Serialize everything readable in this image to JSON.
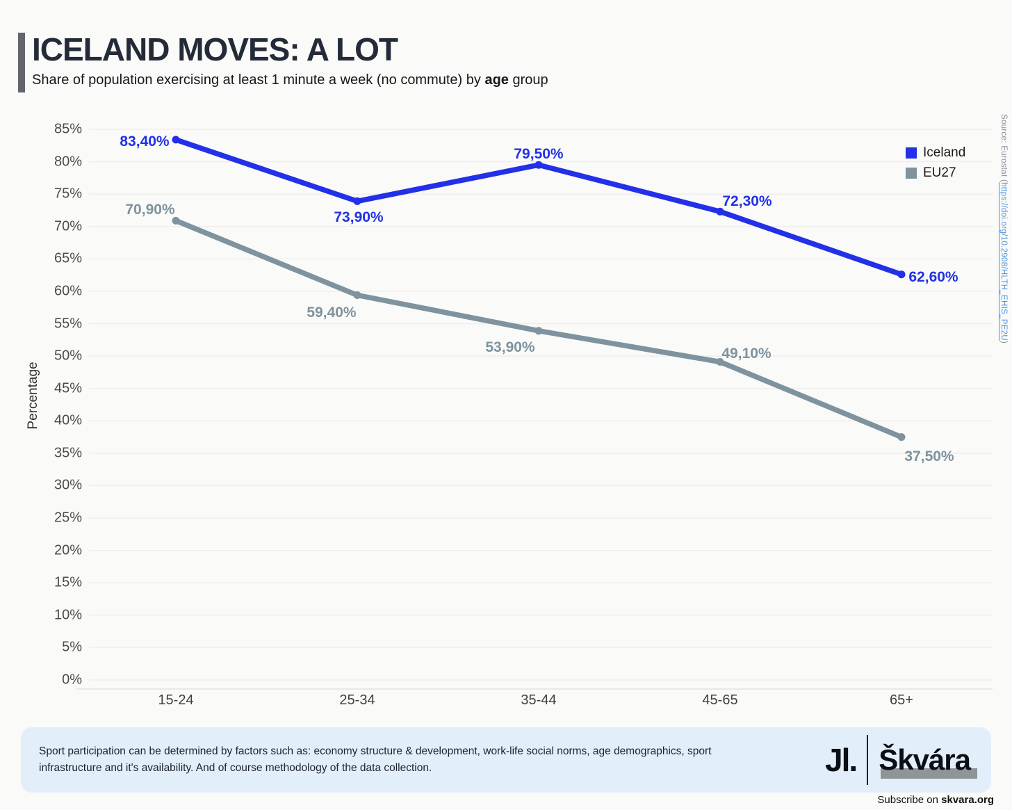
{
  "header": {
    "title": "ICELAND MOVES: A LOT",
    "subtitle_pre": "Share of population exercising at least 1 minute a week (no commute) by ",
    "subtitle_bold": "age",
    "subtitle_post": " group"
  },
  "chart_data": {
    "type": "line",
    "title": "ICELAND MOVES: A LOT",
    "subtitle": "Share of population exercising at least 1 minute a week (no commute) by age group",
    "categories": [
      "15-24",
      "25-34",
      "35-44",
      "45-65",
      "65+"
    ],
    "series": [
      {
        "name": "Iceland",
        "values": [
          83.4,
          73.9,
          79.5,
          72.3,
          62.6
        ],
        "labels": [
          "83,40%",
          "73,90%",
          "79,50%",
          "72,30%",
          "62,60%"
        ],
        "color": "#2230e8"
      },
      {
        "name": "EU27",
        "values": [
          70.9,
          59.4,
          53.9,
          49.1,
          37.5
        ],
        "labels": [
          "70,90%",
          "59,40%",
          "53,90%",
          "49,10%",
          "37,50%"
        ],
        "color": "#7e939e"
      }
    ],
    "xlabel": "",
    "ylabel": "Percentage",
    "ylim": [
      0,
      85
    ],
    "ytick_step": 5,
    "ytick_suffix": "%",
    "grid": true,
    "legend_position": "top-right"
  },
  "source": {
    "prefix": "Source: Eurostat (",
    "link": "https://doi.org/10.2908/HLTH_EHIS_PE2U",
    "suffix": ")"
  },
  "footer": {
    "note": "Sport participation can be determined by factors such as: economy structure & development, work-life social norms, age demographics, sport infrastructure and it's availability. And of course methodology of the data collection.",
    "logo_mark": "Jl.",
    "logo_name": "Škvára",
    "subscribe_pre": "Subscribe on ",
    "subscribe_site": "skvara.org"
  }
}
